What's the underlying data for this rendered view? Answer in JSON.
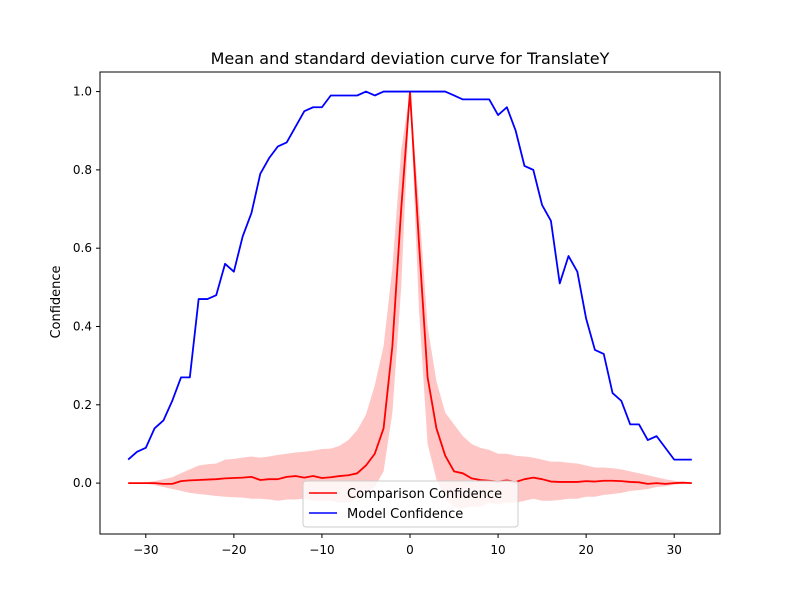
{
  "chart_data": {
    "type": "line",
    "title": "Mean and standard deviation curve for TranslateY",
    "xlabel": "",
    "ylabel": "Confidence",
    "xlim": [
      -35.2,
      35.2
    ],
    "ylim": [
      -0.13,
      1.05
    ],
    "xticks": [
      -30,
      -20,
      -10,
      0,
      10,
      20,
      30
    ],
    "xtick_labels": [
      "−30",
      "−20",
      "−10",
      "0",
      "10",
      "20",
      "30"
    ],
    "yticks": [
      0.0,
      0.2,
      0.4,
      0.6,
      0.8,
      1.0
    ],
    "ytick_labels": [
      "0.0",
      "0.2",
      "0.4",
      "0.6",
      "0.8",
      "1.0"
    ],
    "grid": false,
    "legend_position": "bottom-center",
    "series": [
      {
        "name": "Comparison Confidence",
        "color": "#ff0000",
        "band_color": "#ffb3b3",
        "x": [
          -32,
          -31,
          -30,
          -29,
          -28,
          -27,
          -26,
          -25,
          -24,
          -23,
          -22,
          -21,
          -20,
          -19,
          -18,
          -17,
          -16,
          -15,
          -14,
          -13,
          -12,
          -11,
          -10,
          -9,
          -8,
          -7,
          -6,
          -5,
          -4,
          -3,
          -2,
          -1,
          0,
          1,
          2,
          3,
          4,
          5,
          6,
          7,
          8,
          9,
          10,
          11,
          12,
          13,
          14,
          15,
          16,
          17,
          18,
          19,
          20,
          21,
          22,
          23,
          24,
          25,
          26,
          27,
          28,
          29,
          30,
          31,
          32
        ],
        "y": [
          0.0,
          0.0,
          0.0,
          0.0,
          -0.002,
          -0.002,
          0.005,
          0.007,
          0.008,
          0.009,
          0.01,
          0.012,
          0.013,
          0.014,
          0.016,
          0.008,
          0.01,
          0.01,
          0.016,
          0.018,
          0.014,
          0.018,
          0.013,
          0.015,
          0.018,
          0.02,
          0.025,
          0.045,
          0.075,
          0.14,
          0.35,
          0.7,
          1.0,
          0.62,
          0.27,
          0.14,
          0.07,
          0.03,
          0.025,
          0.012,
          0.008,
          0.006,
          0.004,
          0.007,
          0.003,
          0.01,
          0.014,
          0.01,
          0.004,
          0.003,
          0.003,
          0.003,
          0.005,
          0.004,
          0.006,
          0.006,
          0.005,
          0.003,
          0.002,
          -0.002,
          0.0,
          -0.002,
          0.0,
          0.001,
          0.0
        ],
        "std_lower": [
          0.0,
          0.0,
          -0.002,
          -0.005,
          -0.01,
          -0.015,
          -0.02,
          -0.025,
          -0.028,
          -0.03,
          -0.033,
          -0.035,
          -0.036,
          -0.037,
          -0.04,
          -0.04,
          -0.042,
          -0.045,
          -0.042,
          -0.042,
          -0.04,
          -0.045,
          -0.045,
          -0.045,
          -0.05,
          -0.05,
          -0.04,
          -0.025,
          -0.01,
          0.03,
          0.18,
          0.5,
          1.0,
          0.45,
          0.1,
          0.01,
          -0.04,
          -0.06,
          -0.065,
          -0.06,
          -0.06,
          -0.05,
          -0.055,
          -0.05,
          -0.05,
          -0.045,
          -0.04,
          -0.045,
          -0.045,
          -0.043,
          -0.04,
          -0.04,
          -0.035,
          -0.035,
          -0.03,
          -0.028,
          -0.025,
          -0.02,
          -0.018,
          -0.015,
          -0.01,
          -0.008,
          -0.004,
          -0.002,
          0.0
        ],
        "std_upper": [
          0.0,
          0.0,
          0.002,
          0.005,
          0.01,
          0.015,
          0.025,
          0.035,
          0.045,
          0.048,
          0.05,
          0.06,
          0.062,
          0.065,
          0.068,
          0.065,
          0.068,
          0.072,
          0.075,
          0.078,
          0.08,
          0.083,
          0.087,
          0.088,
          0.095,
          0.11,
          0.135,
          0.175,
          0.25,
          0.35,
          0.55,
          0.85,
          1.0,
          0.72,
          0.4,
          0.26,
          0.18,
          0.15,
          0.12,
          0.1,
          0.09,
          0.085,
          0.075,
          0.075,
          0.07,
          0.068,
          0.065,
          0.06,
          0.055,
          0.055,
          0.052,
          0.05,
          0.045,
          0.04,
          0.04,
          0.038,
          0.035,
          0.03,
          0.025,
          0.02,
          0.015,
          0.01,
          0.006,
          0.003,
          0.0
        ]
      },
      {
        "name": "Model Confidence",
        "color": "#0000ff",
        "x": [
          -32,
          -31,
          -30,
          -29,
          -28,
          -27,
          -26,
          -25,
          -24,
          -23,
          -22,
          -21,
          -20,
          -19,
          -18,
          -17,
          -16,
          -15,
          -14,
          -13,
          -12,
          -11,
          -10,
          -9,
          -8,
          -7,
          -6,
          -5,
          -4,
          -3,
          -2,
          -1,
          0,
          1,
          2,
          3,
          4,
          5,
          6,
          7,
          8,
          9,
          10,
          11,
          12,
          13,
          14,
          15,
          16,
          17,
          18,
          19,
          20,
          21,
          22,
          23,
          24,
          25,
          26,
          27,
          28,
          29,
          30,
          31,
          32
        ],
        "y": [
          0.06,
          0.08,
          0.09,
          0.14,
          0.16,
          0.21,
          0.27,
          0.27,
          0.47,
          0.47,
          0.48,
          0.56,
          0.54,
          0.63,
          0.69,
          0.79,
          0.83,
          0.86,
          0.87,
          0.91,
          0.95,
          0.96,
          0.96,
          0.99,
          0.99,
          0.99,
          0.99,
          1.0,
          0.99,
          1.0,
          1.0,
          1.0,
          1.0,
          1.0,
          1.0,
          1.0,
          1.0,
          0.99,
          0.98,
          0.98,
          0.98,
          0.98,
          0.94,
          0.96,
          0.9,
          0.81,
          0.8,
          0.71,
          0.67,
          0.51,
          0.58,
          0.54,
          0.42,
          0.34,
          0.33,
          0.23,
          0.21,
          0.15,
          0.15,
          0.11,
          0.12,
          0.09,
          0.06,
          0.06,
          0.06
        ]
      }
    ]
  }
}
